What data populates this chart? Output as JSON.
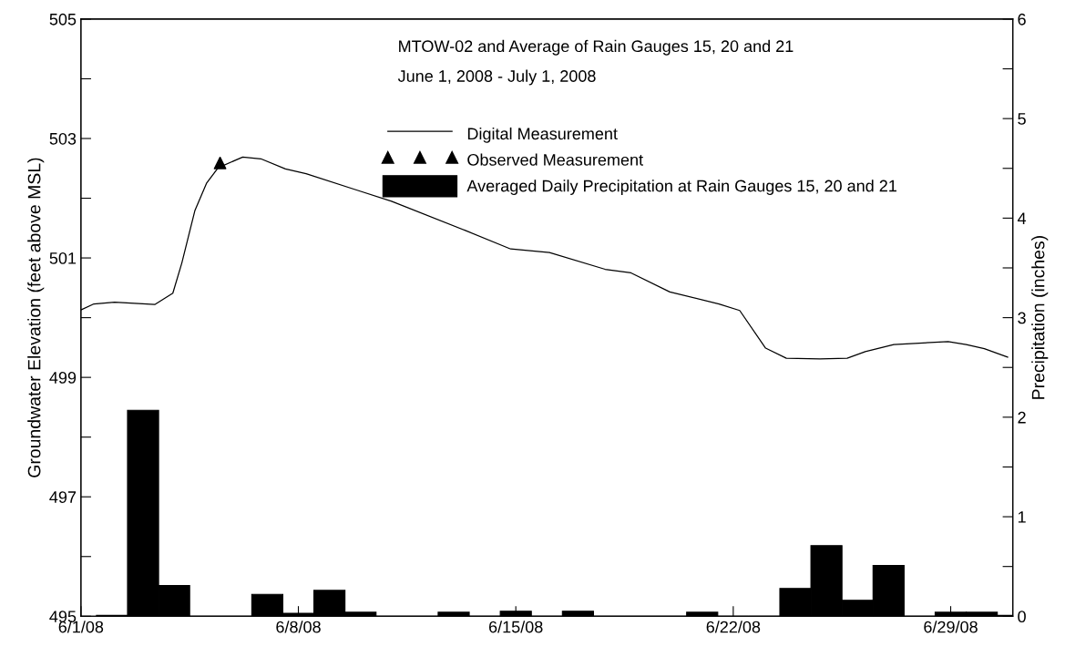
{
  "chart_data": {
    "type": "line",
    "title": "MTOW-02 and Average of Rain Gauges 15, 20 and 21",
    "subtitle": "June 1, 2008 - July 1, 2008",
    "ylabel": "Groundwater Elevation (feet above MSL)",
    "y2label": "Precipitation (inches)",
    "xlim": [
      "2008-06-01",
      "2008-07-01"
    ],
    "xticks": [
      {
        "value": "2008-06-01",
        "label": "6/1/08"
      },
      {
        "value": "2008-06-08",
        "label": "6/8/08"
      },
      {
        "value": "2008-06-15",
        "label": "6/15/08"
      },
      {
        "value": "2008-06-22",
        "label": "6/22/08"
      },
      {
        "value": "2008-06-29",
        "label": "6/29/08"
      }
    ],
    "ylim": [
      495,
      505
    ],
    "yticks": [
      495,
      {
        "value": 496,
        "label": null
      },
      497,
      {
        "value": 498,
        "label": null
      },
      499,
      {
        "value": 500,
        "label": null
      },
      501,
      {
        "value": 502,
        "label": null
      },
      503,
      {
        "value": 504,
        "label": null
      },
      505
    ],
    "y2lim": [
      0,
      6
    ],
    "y2ticks": [
      0,
      {
        "value": 0.5,
        "label": null
      },
      1,
      {
        "value": 1.5,
        "label": null
      },
      2,
      {
        "value": 2.5,
        "label": null
      },
      3,
      {
        "value": 3.5,
        "label": null
      },
      4,
      {
        "value": 4.5,
        "label": null
      },
      5,
      {
        "value": 5.5,
        "label": null
      },
      6
    ],
    "grid": false,
    "legend": "top",
    "series": [
      {
        "name": "Averaged Daily Precipitation at Rain Gauges 15, 20 and 21",
        "type": "bar",
        "axis": "y2",
        "color": "#000000",
        "x": [
          "2008-06-02",
          "2008-06-03",
          "2008-06-04",
          "2008-06-05",
          "2008-06-06",
          "2008-06-07",
          "2008-06-08",
          "2008-06-09",
          "2008-06-10",
          "2008-06-11",
          "2008-06-12",
          "2008-06-13",
          "2008-06-14",
          "2008-06-15",
          "2008-06-16",
          "2008-06-17",
          "2008-06-18",
          "2008-06-19",
          "2008-06-20",
          "2008-06-21",
          "2008-06-22",
          "2008-06-23",
          "2008-06-24",
          "2008-06-25",
          "2008-06-26",
          "2008-06-27",
          "2008-06-28",
          "2008-06-29",
          "2008-06-30",
          "2008-07-01"
        ],
        "values": [
          0.01,
          2.07,
          0.31,
          0,
          0,
          0.22,
          0.03,
          0.26,
          0.04,
          0,
          0,
          0.04,
          0,
          0.05,
          0,
          0.05,
          0,
          0,
          0,
          0.04,
          0,
          0,
          0.28,
          0.71,
          0.16,
          0.51,
          0,
          0.04,
          0.04,
          0.01
        ]
      },
      {
        "name": "Digital Measurement",
        "color": "#000000",
        "marker": "none",
        "x": [
          "2008-06-01T00:00",
          "2008-06-01T10:00",
          "2008-06-02T02:00",
          "2008-06-03T09:00",
          "2008-06-03T23:00",
          "2008-06-04T06:00",
          "2008-06-04T16:00",
          "2008-06-05T01:00",
          "2008-06-05T10:00",
          "2008-06-06T05:00",
          "2008-06-06T19:00",
          "2008-06-07T14:00",
          "2008-06-08T06:00",
          "2008-06-09T22:00",
          "2008-06-11T00:00",
          "2008-06-13T09:00",
          "2008-06-14T20:00",
          "2008-06-16T02:00",
          "2008-06-17T21:00",
          "2008-06-18T17:00",
          "2008-06-19T23:00",
          "2008-06-21T13:00",
          "2008-06-22T05:00",
          "2008-06-23T01:00",
          "2008-06-23T17:00",
          "2008-06-24T19:00",
          "2008-06-25T16:00",
          "2008-06-26T06:00",
          "2008-06-27T04:00",
          "2008-06-28T22:00",
          "2008-06-29T12:00",
          "2008-06-30T02:00",
          "2008-06-30T20:00"
        ],
        "values": [
          500.13,
          500.23,
          500.26,
          500.22,
          500.41,
          500.92,
          501.79,
          502.25,
          502.51,
          502.69,
          502.66,
          502.49,
          502.41,
          502.13,
          501.95,
          501.46,
          501.15,
          501.09,
          500.81,
          500.75,
          500.43,
          500.23,
          500.12,
          499.49,
          499.32,
          499.31,
          499.32,
          499.43,
          499.55,
          499.6,
          499.55,
          499.48,
          499.34
        ]
      },
      {
        "name": "Observed Measurement",
        "type": "scatter",
        "color": "#000000",
        "marker": "triangle",
        "x": [
          "2008-06-05T11:30"
        ],
        "values": [
          502.59
        ]
      }
    ]
  }
}
